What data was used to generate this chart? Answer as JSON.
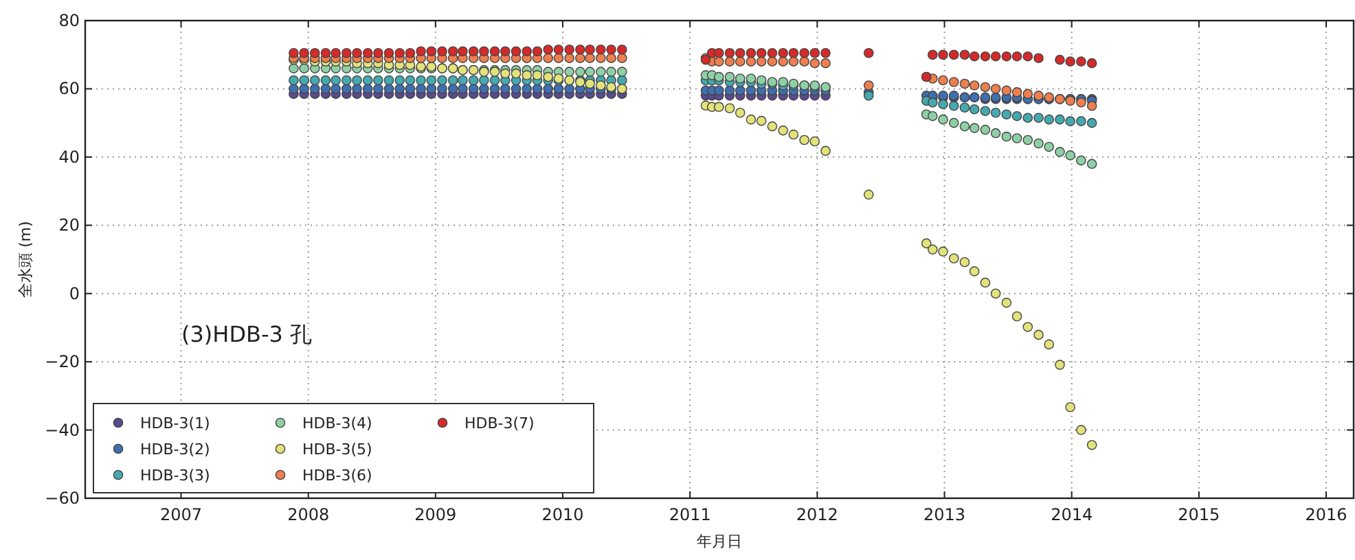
{
  "chart_data": {
    "type": "scatter",
    "xlabel": "年月日",
    "ylabel": "全水頭 (m)",
    "annotations": [
      "(3)HDB-3 孔"
    ],
    "xlim": [
      "2006-04-01",
      "2016-03-20"
    ],
    "xticks": [
      "2007",
      "2008",
      "2009",
      "2010",
      "2011",
      "2012",
      "2013",
      "2014",
      "2015",
      "2016"
    ],
    "ylim": [
      -60,
      80
    ],
    "yticks": [
      -60,
      -40,
      -20,
      0,
      20,
      40,
      60,
      80
    ],
    "grid": true,
    "legend": "bottom left",
    "marker": "circle",
    "x": [
      "2007-11-20",
      "2007-12-20",
      "2008-01-20",
      "2008-02-20",
      "2008-03-20",
      "2008-04-20",
      "2008-05-20",
      "2008-06-20",
      "2008-07-20",
      "2008-08-20",
      "2008-09-20",
      "2008-10-20",
      "2008-11-20",
      "2008-12-20",
      "2009-01-20",
      "2009-02-20",
      "2009-03-20",
      "2009-04-20",
      "2009-05-20",
      "2009-06-20",
      "2009-07-20",
      "2009-08-20",
      "2009-09-20",
      "2009-10-20",
      "2009-11-20",
      "2009-12-20",
      "2010-01-20",
      "2010-02-20",
      "2010-03-20",
      "2010-04-20",
      "2010-05-20",
      "2010-06-20",
      "2011-02-15",
      "2011-03-05",
      "2011-03-25",
      "2011-04-25",
      "2011-05-25",
      "2011-06-25",
      "2011-07-25",
      "2011-08-25",
      "2011-09-25",
      "2011-10-25",
      "2011-11-25",
      "2011-12-25",
      "2012-01-25",
      "2012-05-28",
      "2012-11-10",
      "2012-11-28",
      "2012-12-28",
      "2013-01-28",
      "2013-02-28",
      "2013-03-28",
      "2013-04-28",
      "2013-05-28",
      "2013-06-28",
      "2013-07-28",
      "2013-08-28",
      "2013-09-28",
      "2013-10-28",
      "2013-11-28",
      "2013-12-28",
      "2014-01-28",
      "2014-02-28"
    ],
    "series": [
      {
        "name": "HDB-3(1)",
        "color": "#5b4a8f",
        "values": [
          58.5,
          58.5,
          58.5,
          58.5,
          58.5,
          58.5,
          58.5,
          58.5,
          58.5,
          58.5,
          58.5,
          58.5,
          58.5,
          58.5,
          58.5,
          58.5,
          58.5,
          58.5,
          58.5,
          58.5,
          58.5,
          58.5,
          58.5,
          58.5,
          58.5,
          58.5,
          58.5,
          58.5,
          58.5,
          58.5,
          58.5,
          58.5,
          58,
          58,
          58,
          58,
          58,
          58,
          58,
          58,
          58,
          58,
          58,
          58,
          58,
          null,
          null,
          57.5,
          57.5,
          57.5,
          57.5,
          57.5,
          57,
          57,
          57,
          57,
          57,
          57,
          57,
          57,
          57,
          57,
          57
        ]
      },
      {
        "name": "HDB-3(2)",
        "color": "#3f6fb0",
        "values": [
          60,
          60,
          60,
          60,
          60,
          60,
          60,
          60,
          60,
          60,
          60,
          60,
          60,
          60,
          60,
          60,
          60,
          60,
          60,
          60,
          60,
          60,
          60,
          60,
          60,
          60,
          60,
          60,
          60,
          60,
          60,
          60,
          59.5,
          59.5,
          59.5,
          59.5,
          59.5,
          59.5,
          59.5,
          59.5,
          59.5,
          59.5,
          59.5,
          59.5,
          59.5,
          59,
          58,
          58,
          58,
          58,
          57.5,
          57.5,
          57.5,
          57.5,
          57.5,
          57.5,
          57,
          57,
          57,
          57,
          57,
          57,
          56.5
        ]
      },
      {
        "name": "HDB-3(3)",
        "color": "#46a9b0",
        "values": [
          62.5,
          62.5,
          62.5,
          62.5,
          62.5,
          62.5,
          62.5,
          62.5,
          62.5,
          62.5,
          62.5,
          62.5,
          62.5,
          62.5,
          62.5,
          62.5,
          62.5,
          62.5,
          62.5,
          62.5,
          62.5,
          62.5,
          62.5,
          62.5,
          62.5,
          62.5,
          62.5,
          62.5,
          62.5,
          62.5,
          62.5,
          62.5,
          62.5,
          62.5,
          62.5,
          62,
          62,
          62,
          61.5,
          61.5,
          61,
          61,
          61,
          60.5,
          60.5,
          58,
          56.5,
          56,
          55.5,
          55,
          54.5,
          54,
          53.5,
          53,
          52.5,
          52,
          51.5,
          51.5,
          51,
          51,
          50.5,
          50.5,
          50
        ]
      },
      {
        "name": "HDB-3(4)",
        "color": "#8fcfa5",
        "values": [
          66,
          66,
          66,
          66,
          66,
          66,
          66,
          66,
          66,
          66,
          66,
          66,
          66,
          66,
          66,
          66,
          65.5,
          65.5,
          65.5,
          65.5,
          65.5,
          65.5,
          65.5,
          65.5,
          65,
          65,
          65,
          65,
          65,
          65,
          65,
          65,
          64,
          64,
          63.5,
          63.5,
          63,
          63,
          62.5,
          62,
          62,
          61.5,
          61,
          61,
          60.5,
          null,
          52.5,
          52,
          51,
          50,
          49,
          48.5,
          48,
          47,
          46,
          45.5,
          45,
          44,
          43,
          41.5,
          40.5,
          39,
          38
        ]
      },
      {
        "name": "HDB-3(5)",
        "color": "#e2e27a",
        "values": [
          68.5,
          68.5,
          68,
          68,
          68,
          68,
          67.5,
          67.5,
          67.5,
          67,
          67,
          67,
          66.5,
          66.5,
          66,
          66,
          65.5,
          65.5,
          65,
          65,
          64.5,
          64.5,
          64,
          64,
          63.5,
          63,
          62.5,
          62,
          61.5,
          61,
          60.5,
          60,
          55.1,
          54.7,
          54.7,
          54.3,
          53,
          51,
          50.6,
          49,
          47.8,
          46.6,
          45,
          44.6,
          41.8,
          29,
          14.7,
          12.9,
          12.3,
          10.3,
          9.2,
          6.5,
          3.2,
          0,
          -2.7,
          -6.7,
          -9.8,
          -12.1,
          -14.9,
          -20.9,
          -33.3,
          -40,
          -44.4
        ]
      },
      {
        "name": "HDB-3(6)",
        "color": "#ee7f4f",
        "values": [
          69,
          69,
          69,
          69,
          69,
          69,
          69,
          69,
          69,
          69,
          69,
          69,
          69,
          69,
          69,
          69,
          69,
          69,
          69,
          69,
          69,
          69,
          69,
          69,
          69,
          69,
          69,
          69,
          69,
          69,
          69,
          69,
          69,
          68,
          68,
          68,
          68,
          68,
          68,
          68,
          68,
          68,
          68,
          67.5,
          67.5,
          61,
          63.5,
          63,
          62.5,
          62,
          61.5,
          61,
          60.5,
          60,
          59.5,
          59,
          58.5,
          58,
          57.5,
          57,
          56.5,
          56,
          55
        ]
      },
      {
        "name": "HDB-3(7)",
        "color": "#d42a2a",
        "values": [
          70.5,
          70.5,
          70.5,
          70.5,
          70.5,
          70.5,
          70.5,
          70.5,
          70.5,
          70.5,
          70.5,
          70.5,
          71,
          71,
          71,
          71,
          71,
          71,
          71,
          71,
          71,
          71,
          71,
          71,
          71.5,
          71.5,
          71.5,
          71.5,
          71.5,
          71.5,
          71.5,
          71.5,
          68.5,
          70.5,
          70.5,
          70.5,
          70.5,
          70.5,
          70.5,
          70.5,
          70.5,
          70.5,
          70.5,
          70.5,
          70.5,
          70.5,
          63.5,
          70,
          70,
          70,
          70,
          69.5,
          69.5,
          69.5,
          69.5,
          69.5,
          69.5,
          69,
          null,
          68.5,
          68,
          68,
          67.5
        ]
      }
    ]
  }
}
